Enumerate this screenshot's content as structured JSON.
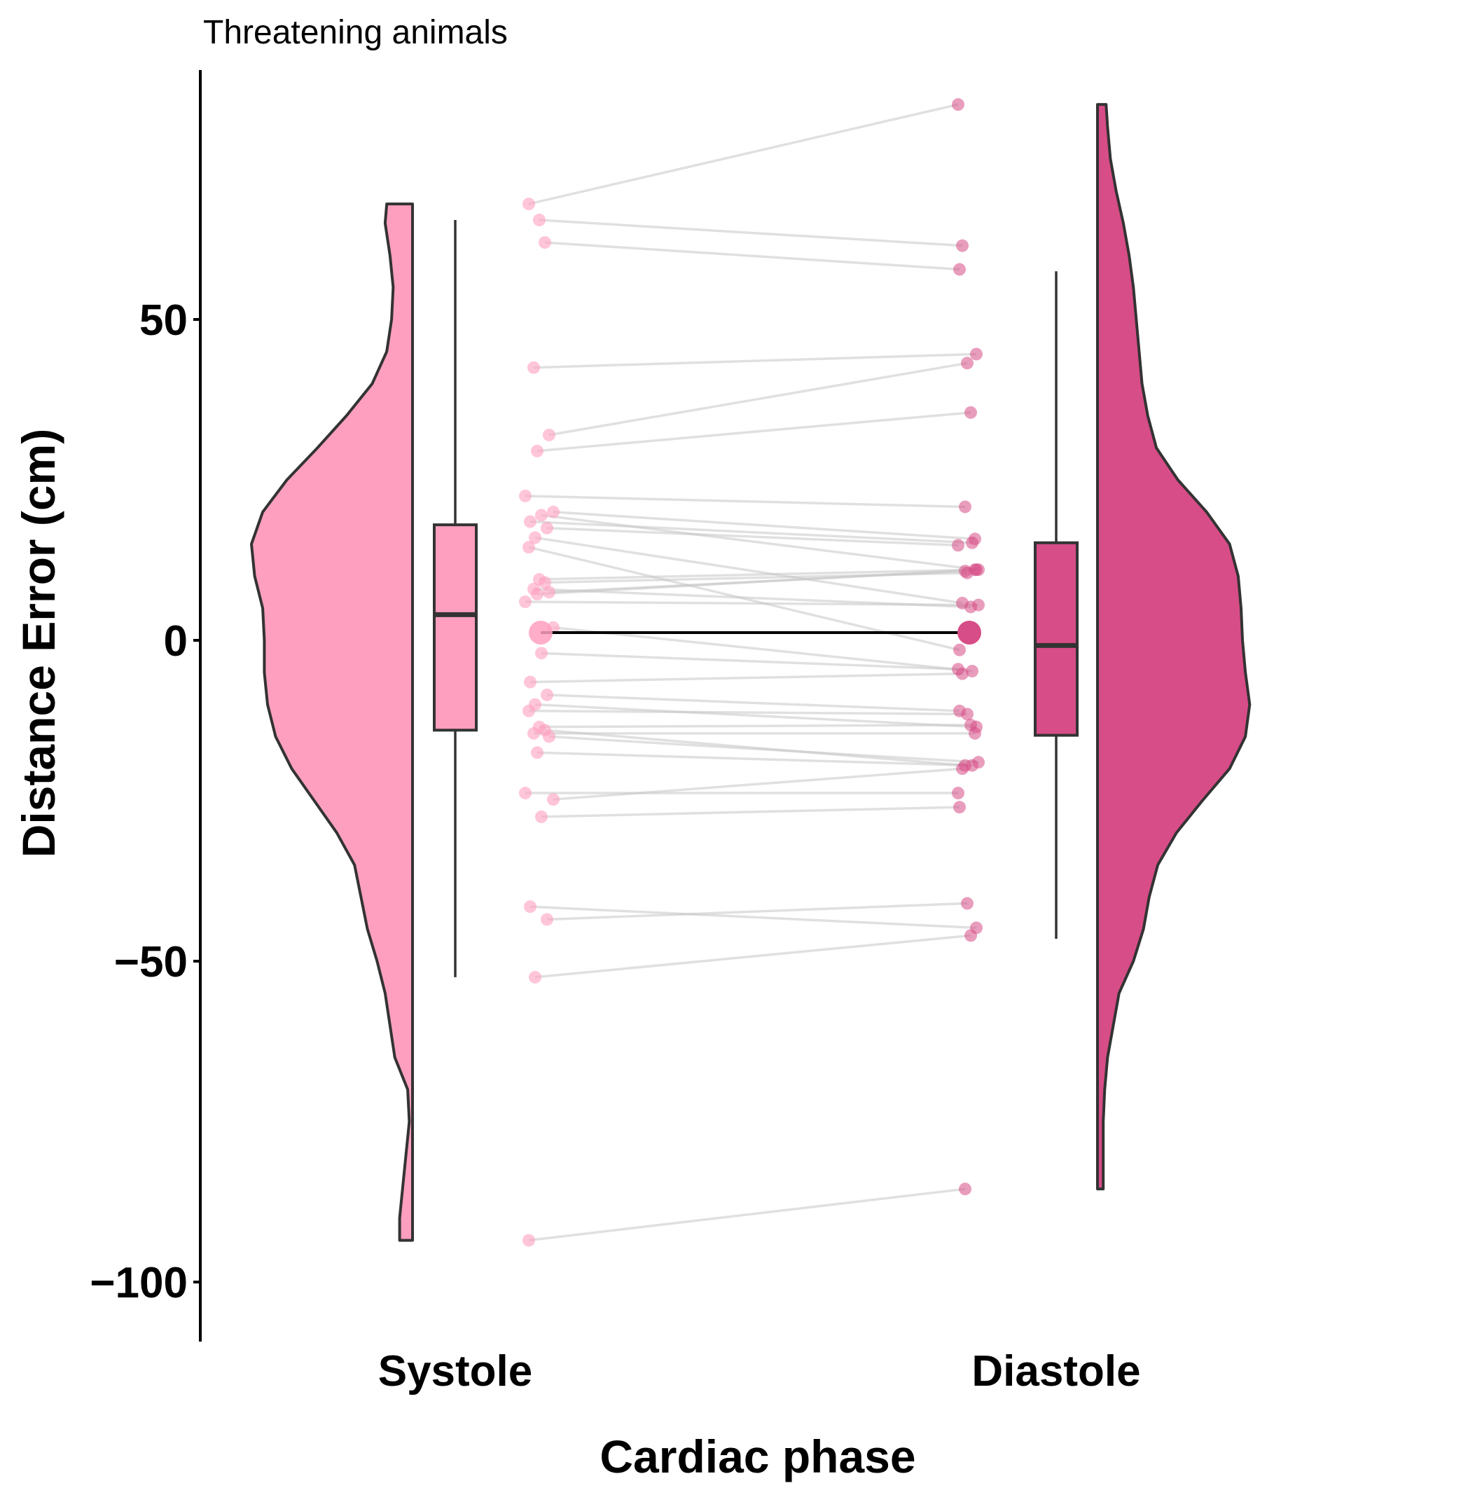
{
  "chart_data": {
    "type": "raincloud",
    "title": "Threatening animals",
    "xlabel": "Cardiac phase",
    "ylabel": "Distance Error (cm)",
    "ylim": [
      -109,
      89
    ],
    "yticks": [
      50,
      0,
      -50,
      -100
    ],
    "ytick_labels": [
      "50",
      "0",
      "−50",
      "−100"
    ],
    "categories": [
      "Systole",
      "Diastole"
    ],
    "colors": {
      "Systole": "#ff9fc0",
      "Diastole": "#d74d87",
      "outline": "#333333",
      "pair_line": "#c8c8c8",
      "mean_line": "#000000"
    },
    "boxplots": [
      {
        "group": "Systole",
        "whisker_low": -52.5,
        "q1": -14,
        "median": 4,
        "q3": 18,
        "whisker_high": 65.5
      },
      {
        "group": "Diastole",
        "whisker_low": -46.5,
        "q1": -14.8,
        "median": -0.8,
        "q3": 15.2,
        "whisker_high": 57.5
      }
    ],
    "violins": [
      {
        "group": "Systole",
        "side": "left",
        "profile": [
          [
            68,
            0.16
          ],
          [
            65,
            0.17
          ],
          [
            60,
            0.14
          ],
          [
            55,
            0.12
          ],
          [
            50,
            0.13
          ],
          [
            45,
            0.16
          ],
          [
            40,
            0.25
          ],
          [
            35,
            0.41
          ],
          [
            30,
            0.59
          ],
          [
            25,
            0.78
          ],
          [
            20,
            0.93
          ],
          [
            15,
            1.0
          ],
          [
            10,
            0.98
          ],
          [
            5,
            0.93
          ],
          [
            0,
            0.92
          ],
          [
            -5,
            0.92
          ],
          [
            -10,
            0.9
          ],
          [
            -15,
            0.85
          ],
          [
            -20,
            0.75
          ],
          [
            -25,
            0.61
          ],
          [
            -30,
            0.47
          ],
          [
            -35,
            0.36
          ],
          [
            -40,
            0.32
          ],
          [
            -45,
            0.28
          ],
          [
            -50,
            0.22
          ],
          [
            -55,
            0.17
          ],
          [
            -60,
            0.14
          ],
          [
            -65,
            0.11
          ],
          [
            -70,
            0.03
          ],
          [
            -75,
            0.02
          ],
          [
            -80,
            0.04
          ],
          [
            -85,
            0.06
          ],
          [
            -90,
            0.08
          ],
          [
            -93.5,
            0.08
          ]
        ]
      },
      {
        "group": "Diastole",
        "side": "right",
        "profile": [
          [
            83.5,
            0.06
          ],
          [
            80,
            0.07
          ],
          [
            75,
            0.09
          ],
          [
            70,
            0.13
          ],
          [
            65,
            0.18
          ],
          [
            60,
            0.22
          ],
          [
            55,
            0.25
          ],
          [
            50,
            0.27
          ],
          [
            45,
            0.29
          ],
          [
            40,
            0.31
          ],
          [
            35,
            0.35
          ],
          [
            30,
            0.41
          ],
          [
            25,
            0.56
          ],
          [
            20,
            0.76
          ],
          [
            15,
            0.92
          ],
          [
            10,
            0.98
          ],
          [
            5,
            1.0
          ],
          [
            0,
            1.01
          ],
          [
            -5,
            1.03
          ],
          [
            -10,
            1.06
          ],
          [
            -15,
            1.03
          ],
          [
            -20,
            0.92
          ],
          [
            -25,
            0.73
          ],
          [
            -30,
            0.55
          ],
          [
            -35,
            0.42
          ],
          [
            -40,
            0.36
          ],
          [
            -45,
            0.32
          ],
          [
            -50,
            0.25
          ],
          [
            -55,
            0.15
          ],
          [
            -60,
            0.11
          ],
          [
            -65,
            0.07
          ],
          [
            -70,
            0.05
          ],
          [
            -75,
            0.04
          ],
          [
            -80,
            0.04
          ],
          [
            -85.5,
            0.04
          ]
        ]
      }
    ],
    "paired_points": [
      [
        68,
        83.5
      ],
      [
        65.5,
        61.5
      ],
      [
        62,
        57.8
      ],
      [
        42.5,
        44.6
      ],
      [
        32,
        43.2
      ],
      [
        29.5,
        35.5
      ],
      [
        22.5,
        20.8
      ],
      [
        20,
        15.8
      ],
      [
        19.5,
        11
      ],
      [
        18.5,
        15.2
      ],
      [
        17.5,
        14.8
      ],
      [
        16,
        5.8
      ],
      [
        14.5,
        -1.5
      ],
      [
        9.5,
        11
      ],
      [
        9,
        10.5
      ],
      [
        8,
        5.2
      ],
      [
        7.5,
        10.8
      ],
      [
        7.2,
        11
      ],
      [
        6,
        5.5
      ],
      [
        2,
        -4.8
      ],
      [
        -2,
        -4.5
      ],
      [
        -6.5,
        -5.2
      ],
      [
        -8.5,
        -11
      ],
      [
        -10,
        -13.5
      ],
      [
        -11,
        -11.5
      ],
      [
        -13.5,
        -13.2
      ],
      [
        -14,
        -19.5
      ],
      [
        -14.5,
        -14.5
      ],
      [
        -15,
        -19
      ],
      [
        -17.5,
        -19.5
      ],
      [
        -23.8,
        -23.8
      ],
      [
        -24.8,
        -20
      ],
      [
        -27.5,
        -26
      ],
      [
        -41.5,
        -44.8
      ],
      [
        -43.5,
        -41
      ],
      [
        -52.5,
        -46
      ],
      [
        -93.5,
        -85.5
      ]
    ],
    "means": [
      {
        "group": "Systole",
        "value": 1.2
      },
      {
        "group": "Diastole",
        "value": 1.2
      }
    ]
  }
}
